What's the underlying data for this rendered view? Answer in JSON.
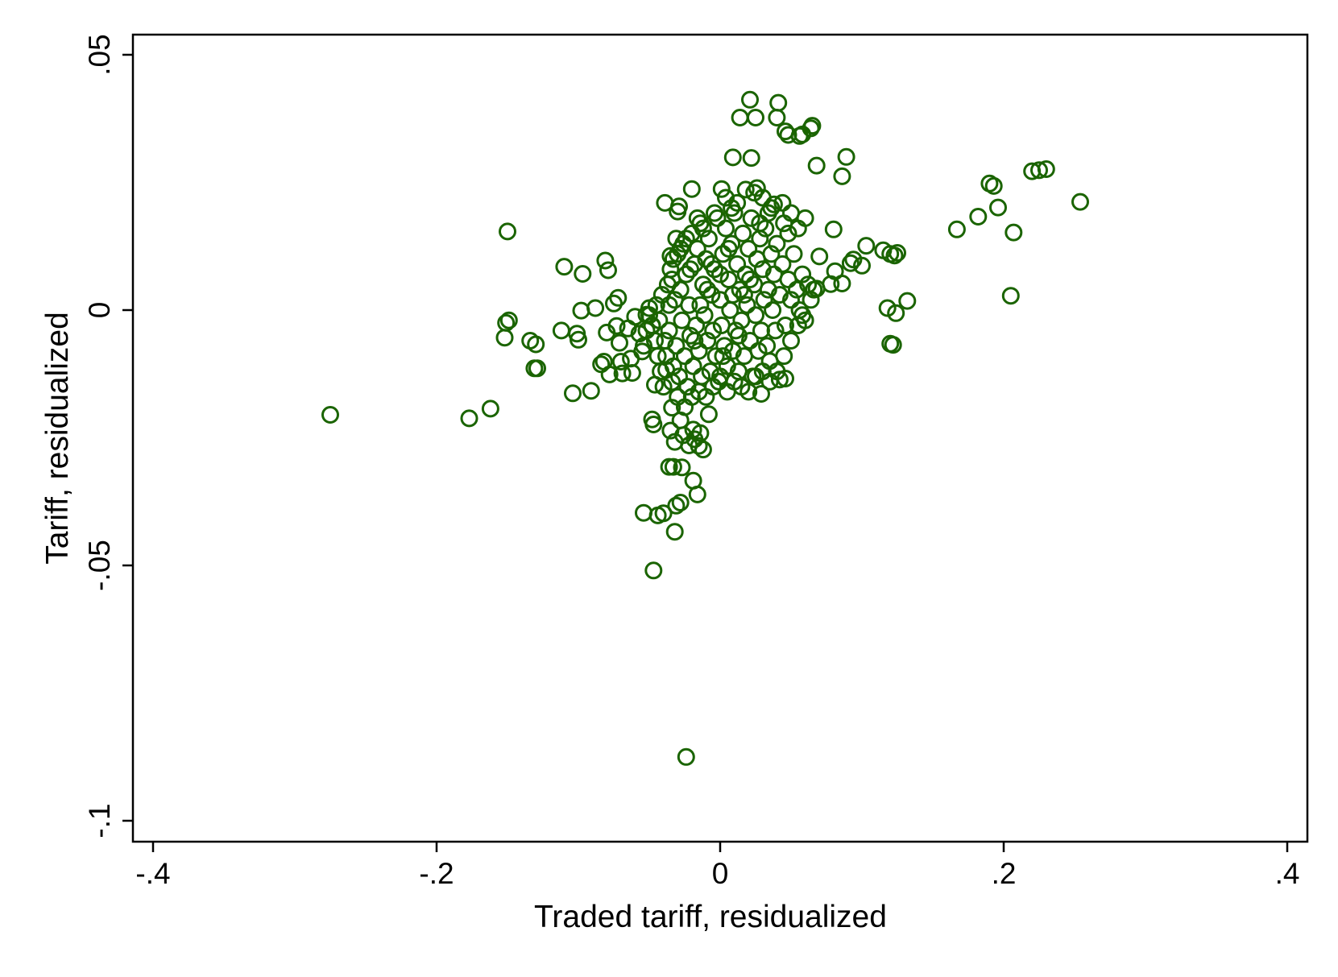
{
  "colors": {
    "marker": "#1a6400",
    "axis": "#000000",
    "background": "#ffffff"
  },
  "chart_data": {
    "type": "scatter",
    "title": "",
    "xlabel": "Traded tariff, residualized",
    "ylabel": "Tariff, residualized",
    "xlim": [
      -0.4,
      0.4
    ],
    "ylim": [
      -0.1,
      0.05
    ],
    "grid": false,
    "legend": "none",
    "marker": "hollow-circle",
    "x_ticks": [
      {
        "value": -0.4,
        "label": "-.4"
      },
      {
        "value": -0.2,
        "label": "-.2"
      },
      {
        "value": 0,
        "label": "0"
      },
      {
        "value": 0.2,
        "label": ".2"
      },
      {
        "value": 0.4,
        "label": ".4"
      }
    ],
    "y_ticks": [
      {
        "value": 0.05,
        "label": ".05"
      },
      {
        "value": 0,
        "label": "0"
      },
      {
        "value": -0.05,
        "label": "-.05"
      },
      {
        "value": -0.1,
        "label": "-.1"
      }
    ],
    "points": [
      [
        -0.275,
        -0.0205
      ],
      [
        -0.177,
        -0.0212
      ],
      [
        -0.162,
        -0.0193
      ],
      [
        -0.15,
        0.0154
      ],
      [
        -0.149,
        -0.002
      ],
      [
        -0.151,
        -0.0025
      ],
      [
        -0.152,
        -0.0054
      ],
      [
        -0.134,
        -0.006
      ],
      [
        -0.13,
        -0.0067
      ],
      [
        -0.131,
        -0.0114
      ],
      [
        -0.129,
        -0.0114
      ],
      [
        -0.11,
        0.0085
      ],
      [
        -0.112,
        -0.004
      ],
      [
        -0.104,
        -0.0163
      ],
      [
        -0.1,
        -0.0058
      ],
      [
        -0.101,
        -0.0046
      ],
      [
        -0.098,
        -0.0001
      ],
      [
        -0.097,
        0.0071
      ],
      [
        -0.091,
        -0.0158
      ],
      [
        -0.088,
        0.0004
      ],
      [
        -0.084,
        -0.0106
      ],
      [
        -0.082,
        -0.0101
      ],
      [
        -0.081,
        0.0097
      ],
      [
        -0.079,
        0.0078
      ],
      [
        -0.08,
        -0.0044
      ],
      [
        -0.078,
        -0.0126
      ],
      [
        -0.075,
        0.0013
      ],
      [
        -0.072,
        0.0024
      ],
      [
        -0.073,
        -0.0031
      ],
      [
        -0.071,
        -0.0064
      ],
      [
        -0.07,
        -0.0101
      ],
      [
        -0.069,
        -0.0124
      ],
      [
        -0.065,
        -0.0036
      ],
      [
        -0.063,
        -0.0095
      ],
      [
        -0.062,
        -0.0123
      ],
      [
        -0.06,
        -0.0013
      ],
      [
        -0.057,
        -0.0046
      ],
      [
        -0.055,
        -0.0081
      ],
      [
        -0.052,
        -0.0009
      ],
      [
        -0.05,
        0.0004
      ],
      [
        -0.048,
        -0.0031
      ],
      [
        -0.046,
        -0.0146
      ],
      [
        -0.048,
        -0.0214
      ],
      [
        -0.047,
        -0.0224
      ],
      [
        -0.054,
        -0.0397
      ],
      [
        -0.044,
        -0.0402
      ],
      [
        -0.04,
        -0.0398
      ],
      [
        -0.047,
        -0.051
      ],
      [
        -0.039,
        0.021
      ],
      [
        -0.038,
        -0.0117
      ],
      [
        -0.035,
        0.0106
      ],
      [
        -0.034,
        -0.0141
      ],
      [
        -0.034,
        -0.0191
      ],
      [
        -0.035,
        -0.0236
      ],
      [
        -0.036,
        -0.0307
      ],
      [
        -0.033,
        -0.0307
      ],
      [
        -0.032,
        -0.0258
      ],
      [
        -0.031,
        -0.0383
      ],
      [
        -0.032,
        -0.0434
      ],
      [
        -0.03,
        0.0193
      ],
      [
        -0.029,
        0.0203
      ],
      [
        -0.028,
        -0.0216
      ],
      [
        -0.027,
        -0.0308
      ],
      [
        -0.026,
        -0.0245
      ],
      [
        -0.028,
        -0.0377
      ],
      [
        -0.024,
        -0.0875
      ],
      [
        -0.022,
        -0.0265
      ],
      [
        -0.02,
        0.0237
      ],
      [
        -0.019,
        -0.0234
      ],
      [
        -0.018,
        -0.0253
      ],
      [
        -0.019,
        -0.0334
      ],
      [
        -0.016,
        -0.0361
      ],
      [
        -0.015,
        -0.0266
      ],
      [
        -0.014,
        -0.0241
      ],
      [
        -0.012,
        -0.0273
      ],
      [
        -0.008,
        -0.0204
      ],
      [
        0.001,
        0.0237
      ],
      [
        0.004,
        0.022
      ],
      [
        0.009,
        0.0299
      ],
      [
        0.014,
        0.0377
      ],
      [
        0.018,
        0.0236
      ],
      [
        0.021,
        0.0412
      ],
      [
        0.022,
        0.0298
      ],
      [
        0.025,
        0.0377
      ],
      [
        0.026,
        0.0239
      ],
      [
        0.029,
        -0.0164
      ],
      [
        0.038,
        0.0207
      ],
      [
        0.04,
        0.0377
      ],
      [
        0.041,
        0.0406
      ],
      [
        0.042,
        -0.0136
      ],
      [
        0.046,
        -0.0134
      ],
      [
        0.046,
        0.035
      ],
      [
        0.048,
        0.0343
      ],
      [
        0.056,
        0.0341
      ],
      [
        0.058,
        0.0344
      ],
      [
        0.064,
        0.0356
      ],
      [
        0.065,
        0.0361
      ],
      [
        0.068,
        0.0283
      ],
      [
        0.086,
        0.0262
      ],
      [
        0.089,
        0.03
      ],
      [
        0.08,
        0.0158
      ],
      [
        0.07,
        0.0105
      ],
      [
        0.068,
        0.0042
      ],
      [
        0.078,
        0.0051
      ],
      [
        0.081,
        0.0076
      ],
      [
        0.086,
        0.0052
      ],
      [
        0.092,
        0.0092
      ],
      [
        0.094,
        0.0099
      ],
      [
        0.1,
        0.0087
      ],
      [
        0.103,
        0.0126
      ],
      [
        0.115,
        0.0117
      ],
      [
        0.12,
        0.011
      ],
      [
        0.125,
        0.0112
      ],
      [
        0.123,
        0.0107
      ],
      [
        0.118,
        0.0004
      ],
      [
        0.124,
        -0.0006
      ],
      [
        0.132,
        0.0018
      ],
      [
        0.12,
        -0.0066
      ],
      [
        0.122,
        -0.0068
      ],
      [
        0.167,
        0.0158
      ],
      [
        0.182,
        0.0183
      ],
      [
        0.19,
        0.0248
      ],
      [
        0.193,
        0.0243
      ],
      [
        0.196,
        0.0201
      ],
      [
        0.207,
        0.0152
      ],
      [
        0.205,
        0.0028
      ],
      [
        0.22,
        0.0272
      ],
      [
        0.225,
        0.0274
      ],
      [
        0.23,
        0.0276
      ],
      [
        0.254,
        0.0212
      ],
      [
        -0.045,
        0.001
      ],
      [
        -0.043,
        -0.002
      ],
      [
        -0.041,
        0.003
      ],
      [
        -0.039,
        -0.006
      ],
      [
        -0.038,
        -0.009
      ],
      [
        -0.037,
        0.005
      ],
      [
        -0.036,
        -0.004
      ],
      [
        -0.035,
        0.008
      ],
      [
        -0.033,
        -0.011
      ],
      [
        -0.032,
        0.002
      ],
      [
        -0.031,
        -0.007
      ],
      [
        -0.03,
        0.011
      ],
      [
        -0.029,
        -0.013
      ],
      [
        -0.028,
        0.004
      ],
      [
        -0.027,
        -0.002
      ],
      [
        -0.026,
        0.013
      ],
      [
        -0.025,
        -0.009
      ],
      [
        -0.024,
        0.007
      ],
      [
        -0.023,
        -0.015
      ],
      [
        -0.022,
        0.001
      ],
      [
        -0.021,
        -0.005
      ],
      [
        -0.02,
        0.015
      ],
      [
        -0.019,
        -0.011
      ],
      [
        -0.018,
        0.009
      ],
      [
        -0.017,
        -0.003
      ],
      [
        -0.016,
        0.012
      ],
      [
        -0.015,
        -0.008
      ],
      [
        -0.014,
        0.017
      ],
      [
        -0.013,
        -0.013
      ],
      [
        -0.012,
        0.005
      ],
      [
        -0.011,
        -0.001
      ],
      [
        -0.01,
        0.01
      ],
      [
        -0.009,
        -0.006
      ],
      [
        -0.008,
        0.014
      ],
      [
        -0.007,
        -0.012
      ],
      [
        -0.006,
        0.003
      ],
      [
        -0.005,
        -0.004
      ],
      [
        -0.004,
        0.008
      ],
      [
        -0.003,
        -0.009
      ],
      [
        -0.002,
        0.018
      ],
      [
        -0.001,
        -0.014
      ],
      [
        0.0,
        0.002
      ],
      [
        0.001,
        -0.003
      ],
      [
        0.002,
        0.011
      ],
      [
        0.003,
        -0.007
      ],
      [
        0.004,
        0.016
      ],
      [
        0.005,
        -0.011
      ],
      [
        0.006,
        0.006
      ],
      [
        0.007,
        0.0
      ],
      [
        0.008,
        0.013
      ],
      [
        0.009,
        -0.008
      ],
      [
        0.01,
        0.019
      ],
      [
        0.011,
        -0.004
      ],
      [
        0.012,
        0.009
      ],
      [
        0.013,
        -0.012
      ],
      [
        0.014,
        0.004
      ],
      [
        0.015,
        -0.002
      ],
      [
        0.016,
        0.015
      ],
      [
        0.017,
        -0.009
      ],
      [
        0.018,
        0.007
      ],
      [
        0.019,
        0.001
      ],
      [
        0.02,
        0.012
      ],
      [
        0.021,
        -0.006
      ],
      [
        0.022,
        0.018
      ],
      [
        0.023,
        -0.013
      ],
      [
        0.024,
        0.005
      ],
      [
        0.025,
        -0.001
      ],
      [
        0.026,
        0.01
      ],
      [
        0.027,
        -0.008
      ],
      [
        0.028,
        0.014
      ],
      [
        0.029,
        -0.004
      ],
      [
        0.03,
        0.008
      ],
      [
        0.031,
        0.002
      ],
      [
        0.032,
        0.016
      ],
      [
        0.033,
        -0.007
      ],
      [
        0.034,
        0.004
      ],
      [
        0.035,
        -0.01
      ],
      [
        0.036,
        0.011
      ],
      [
        0.037,
        0.0
      ],
      [
        0.038,
        0.007
      ],
      [
        0.039,
        -0.004
      ],
      [
        0.04,
        0.013
      ],
      [
        0.042,
        0.003
      ],
      [
        0.044,
        0.009
      ],
      [
        0.046,
        -0.003
      ],
      [
        0.048,
        0.006
      ],
      [
        0.05,
        0.002
      ],
      [
        0.052,
        0.011
      ],
      [
        0.054,
        0.004
      ],
      [
        0.056,
        0.0
      ],
      [
        0.058,
        0.007
      ],
      [
        0.06,
        -0.002
      ],
      [
        0.062,
        0.005
      ],
      [
        0.064,
        0.002
      ],
      [
        0.066,
        0.004
      ],
      [
        0.045,
        0.017
      ],
      [
        0.048,
        0.015
      ],
      [
        0.05,
        0.019
      ],
      [
        0.055,
        0.016
      ],
      [
        0.06,
        0.018
      ],
      [
        0.044,
        0.021
      ],
      [
        0.036,
        0.02
      ],
      [
        0.034,
        0.019
      ],
      [
        0.03,
        0.022
      ],
      [
        0.028,
        0.017
      ],
      [
        0.024,
        0.023
      ],
      [
        0.012,
        0.021
      ],
      [
        0.008,
        0.02
      ],
      [
        -0.004,
        0.019
      ],
      [
        -0.012,
        0.016
      ],
      [
        -0.016,
        0.018
      ],
      [
        -0.024,
        0.014
      ],
      [
        -0.028,
        0.012
      ],
      [
        -0.033,
        0.01
      ],
      [
        -0.04,
        -0.015
      ],
      [
        -0.03,
        -0.017
      ],
      [
        -0.025,
        -0.019
      ],
      [
        -0.02,
        -0.017
      ],
      [
        -0.015,
        -0.016
      ],
      [
        -0.01,
        -0.017
      ],
      [
        -0.005,
        -0.015
      ],
      [
        0.0,
        -0.013
      ],
      [
        0.005,
        -0.016
      ],
      [
        0.01,
        -0.014
      ],
      [
        0.015,
        -0.015
      ],
      [
        0.02,
        -0.016
      ],
      [
        0.025,
        -0.013
      ],
      [
        0.03,
        -0.012
      ],
      [
        0.035,
        -0.014
      ],
      [
        0.04,
        -0.012
      ],
      [
        0.045,
        -0.009
      ],
      [
        0.05,
        -0.006
      ],
      [
        0.055,
        -0.003
      ],
      [
        0.058,
        -0.001
      ],
      [
        -0.042,
        -0.012
      ],
      [
        -0.044,
        -0.009
      ],
      [
        -0.046,
        -0.006
      ],
      [
        -0.048,
        -0.003
      ],
      [
        -0.05,
        -0.001
      ],
      [
        -0.052,
        -0.004
      ],
      [
        -0.054,
        -0.007
      ],
      [
        -0.036,
        0.001
      ],
      [
        -0.034,
        0.006
      ],
      [
        -0.031,
        0.014
      ],
      [
        0.0,
        0.007
      ],
      [
        0.002,
        -0.009
      ],
      [
        0.006,
        0.012
      ],
      [
        -0.006,
        0.009
      ],
      [
        -0.009,
        0.004
      ],
      [
        0.013,
        -0.005
      ],
      [
        0.017,
        0.003
      ],
      [
        -0.018,
        -0.006
      ],
      [
        -0.021,
        0.008
      ],
      [
        0.021,
        0.006
      ],
      [
        -0.014,
        0.001
      ],
      [
        0.009,
        0.003
      ]
    ]
  }
}
